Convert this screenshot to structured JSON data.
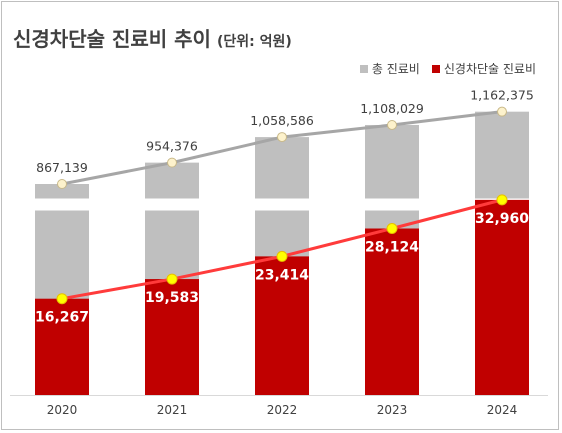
{
  "title": {
    "main": "신경차단술 진료비 추이",
    "unit": "(단위: 억원)"
  },
  "colors": {
    "total": "#bfbfbf",
    "total_line": "#a6a6a6",
    "nerve": "#c00000",
    "nerve_line": "#ff3b3b",
    "marker_total": "#fdf2cc",
    "marker_nerve": "#ffff00"
  },
  "legend": [
    {
      "label": "총 진료비",
      "color": "#bfbfbf"
    },
    {
      "label": "신경차단술 진료비",
      "color": "#c00000"
    }
  ],
  "chart_data": {
    "type": "bar",
    "categories": [
      "2020",
      "2021",
      "2022",
      "2023",
      "2024"
    ],
    "series": [
      {
        "name": "총 진료비",
        "values": [
          867139,
          954376,
          1058586,
          1108029,
          1162375
        ],
        "labels": [
          "867,139",
          "954,376",
          "1,058,586",
          "1,108,029",
          "1,162,375"
        ]
      },
      {
        "name": "신경차단술 진료비",
        "values": [
          16267,
          19583,
          23414,
          28124,
          32960
        ],
        "labels": [
          "16,267",
          "19,583",
          "23,414",
          "28,124",
          "32,960"
        ]
      }
    ],
    "axis_break": true,
    "grid": false,
    "legend_position": "top-right"
  }
}
